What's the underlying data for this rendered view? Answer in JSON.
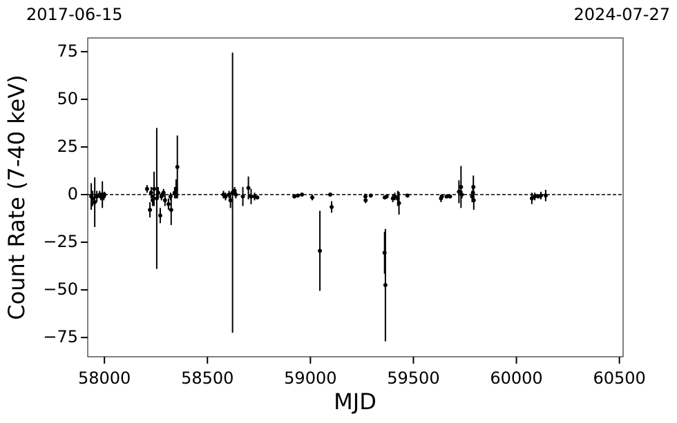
{
  "chart_data": {
    "type": "scatter",
    "top_left_label": "2017-06-15",
    "top_right_label": "2024-07-27",
    "xlabel": "MJD",
    "ylabel": "Count Rate (7-40 keV)",
    "xlim": [
      57919,
      60518
    ],
    "ylim": [
      -85.1,
      82.2
    ],
    "xticks": [
      58000,
      58500,
      59000,
      59500,
      60000,
      60500
    ],
    "yticks": [
      {
        "value": -75,
        "label": "−75"
      },
      {
        "value": -50,
        "label": "−50"
      },
      {
        "value": -25,
        "label": "−25"
      },
      0,
      25,
      50,
      75
    ],
    "reference_line": 0,
    "series": [
      {
        "color": "#000000",
        "x": [
          57936,
          57943,
          57953,
          57963,
          57977,
          57983,
          57990,
          57997,
          58000,
          58207,
          58221,
          58227,
          58234,
          58241,
          58254,
          58261,
          58271,
          58277,
          58287,
          58294,
          58311,
          58321,
          58324,
          58341,
          58348,
          58354,
          58578,
          58588,
          58605,
          58612,
          58622,
          58632,
          58638,
          58672,
          58699,
          58712,
          58729,
          58742,
          58922,
          58939,
          58959,
          59009,
          59046,
          59096,
          59103,
          59267,
          59268,
          59293,
          59360,
          59361,
          59364,
          59370,
          59400,
          59410,
          59424,
          59430,
          59471,
          59634,
          59638,
          59661,
          59678,
          59721,
          59731,
          59735,
          59785,
          59789,
          59791,
          59793,
          60075,
          60089,
          60106,
          60119,
          60142
        ],
        "values": [
          -1,
          -2,
          -4,
          -1,
          0,
          -1,
          0,
          -1,
          0,
          3,
          -8,
          1,
          -3,
          3,
          -2,
          1,
          -11,
          -1,
          1,
          -3,
          -5,
          -1,
          -8,
          1,
          3,
          14.5,
          0,
          -1,
          0,
          -3,
          1,
          2,
          0,
          -1,
          3.5,
          -1,
          -1,
          -1.5,
          -1,
          -0.5,
          0,
          -1.5,
          -29.5,
          0,
          -6.5,
          -1,
          -3,
          -0.5,
          -30.5,
          -1.5,
          -47.5,
          -1,
          -2,
          -1,
          -2,
          -4.5,
          -0.5,
          -2,
          -1,
          -1,
          -1,
          1.5,
          4,
          0,
          -1,
          1,
          4,
          -3,
          -2,
          -1,
          -1,
          -0.5,
          -0.5
        ],
        "errors": [
          7,
          4,
          13,
          3,
          2,
          2,
          7,
          2,
          1.5,
          2,
          4,
          3,
          3,
          9,
          37,
          3,
          4,
          2,
          2,
          3,
          3,
          2,
          8,
          3,
          5,
          16.5,
          2,
          2,
          2,
          4,
          73.5,
          2,
          2,
          5,
          6,
          4,
          2,
          1,
          1,
          1,
          1,
          1.5,
          21,
          1,
          3,
          1.5,
          1.5,
          1,
          11,
          1,
          29.5,
          1,
          2,
          2,
          4,
          6,
          1,
          2,
          1,
          1,
          1,
          6,
          11,
          2,
          3,
          4,
          6,
          5,
          3,
          2,
          1,
          2,
          3
        ]
      }
    ]
  }
}
